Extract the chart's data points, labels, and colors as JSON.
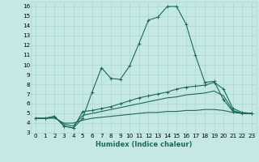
{
  "xlabel": "Humidex (Indice chaleur)",
  "bg_color": "#c5e8e5",
  "line_color": "#1a6b5a",
  "grid_color": "#a8d8d0",
  "x_values": [
    0,
    1,
    2,
    3,
    4,
    5,
    6,
    7,
    8,
    9,
    10,
    11,
    12,
    13,
    14,
    15,
    16,
    17,
    18,
    19,
    20,
    21,
    22,
    23
  ],
  "line1": [
    4.5,
    4.5,
    4.7,
    3.7,
    3.5,
    4.5,
    7.2,
    9.7,
    8.6,
    8.5,
    9.9,
    12.2,
    14.6,
    14.9,
    16.0,
    16.0,
    14.2,
    11.0,
    8.2,
    8.3,
    6.4,
    5.2,
    5.0,
    5.0
  ],
  "line2": [
    4.5,
    4.5,
    4.7,
    3.7,
    3.5,
    5.2,
    5.3,
    5.5,
    5.7,
    6.0,
    6.3,
    6.6,
    6.8,
    7.0,
    7.2,
    7.5,
    7.7,
    7.8,
    7.9,
    8.2,
    7.5,
    5.5,
    5.1,
    5.0
  ],
  "line3": [
    4.5,
    4.5,
    4.6,
    3.9,
    3.7,
    4.8,
    5.0,
    5.2,
    5.4,
    5.6,
    5.8,
    6.0,
    6.2,
    6.4,
    6.6,
    6.7,
    6.9,
    7.0,
    7.1,
    7.3,
    6.8,
    5.3,
    5.0,
    5.0
  ],
  "line4": [
    4.5,
    4.5,
    4.5,
    4.0,
    4.0,
    4.3,
    4.5,
    4.6,
    4.7,
    4.8,
    4.9,
    5.0,
    5.1,
    5.1,
    5.2,
    5.2,
    5.3,
    5.3,
    5.4,
    5.4,
    5.3,
    5.1,
    5.0,
    5.0
  ],
  "ylim": [
    3,
    16.5
  ],
  "xlim": [
    -0.5,
    23.5
  ],
  "yticks": [
    3,
    4,
    5,
    6,
    7,
    8,
    9,
    10,
    11,
    12,
    13,
    14,
    15,
    16
  ],
  "xticks": [
    0,
    1,
    2,
    3,
    4,
    5,
    6,
    7,
    8,
    9,
    10,
    11,
    12,
    13,
    14,
    15,
    16,
    17,
    18,
    19,
    20,
    21,
    22,
    23
  ],
  "xlabel_fontsize": 6.0,
  "tick_fontsize": 5.2
}
